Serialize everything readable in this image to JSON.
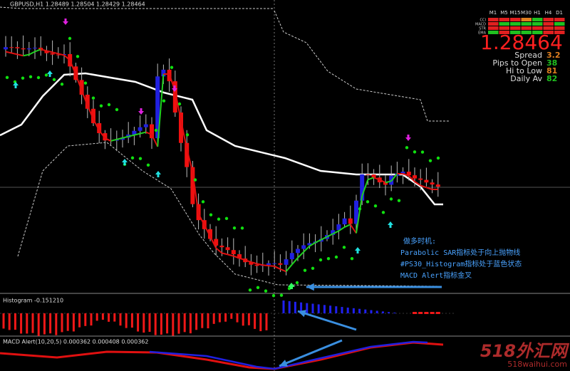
{
  "header": {
    "symbol_info": "GBPUSD,H1  1.28489 1.28504 1.28429 1.28464"
  },
  "panel": {
    "timeframes": [
      "M1",
      "M5",
      "M15",
      "M30",
      "H1",
      "H4",
      "D1"
    ],
    "rows": [
      "CCI",
      "MACD",
      "STR",
      "EMA"
    ],
    "price": "1.28464",
    "stats": [
      {
        "label": "Spread",
        "value": 3.2
      },
      {
        "label": "Pips to Open",
        "value": 38
      },
      {
        "label": "Hi to Low",
        "value": 81
      },
      {
        "label": "Daily Av",
        "value": 82
      }
    ]
  },
  "annotation": {
    "lines": [
      "做多时机:",
      "Parabolic SAR指标处于向上抛物线",
      "#PS30_Histogram指标处于蓝色状态",
      "MACD Alert指标金叉"
    ]
  },
  "histogram": {
    "label": "Histogram -0.151210"
  },
  "macd": {
    "label": "MACD Alert(10,20,5) 0.000362 0.000408 0.000362"
  },
  "watermark": {
    "cn": "518外汇网",
    "url": "518waihui.com"
  }
}
